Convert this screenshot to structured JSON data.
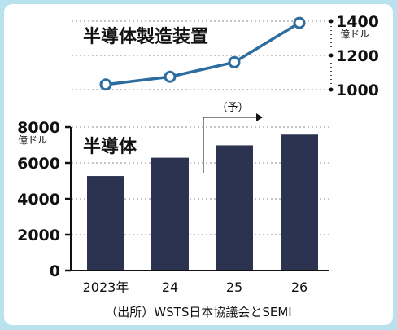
{
  "chart_data": [
    {
      "type": "line",
      "title": "半導体製造装置",
      "ylabel": "億ドル",
      "x": [
        "2023年",
        "24",
        "25",
        "26"
      ],
      "series": [
        {
          "values": [
            1030,
            1075,
            1160,
            1390
          ]
        }
      ],
      "ylim": [
        1000,
        1400
      ],
      "yticks": [
        "1000",
        "1200",
        "1400"
      ],
      "color": "#2d6c9e",
      "grid": true,
      "legend": "none"
    },
    {
      "type": "bar",
      "title": "半導体",
      "ylabel": "億ドル",
      "categories": [
        "2023年",
        "24",
        "25",
        "26"
      ],
      "values": [
        5270,
        6290,
        6980,
        7580
      ],
      "ylim": [
        0,
        8000
      ],
      "yticks": [
        "0",
        "2000",
        "4000",
        "6000",
        "8000"
      ],
      "color": "#2b3350",
      "grid": true,
      "legend": "none"
    }
  ],
  "forecast_label": "（予）",
  "source": "（出所）WSTS日本協議会とSEMI"
}
